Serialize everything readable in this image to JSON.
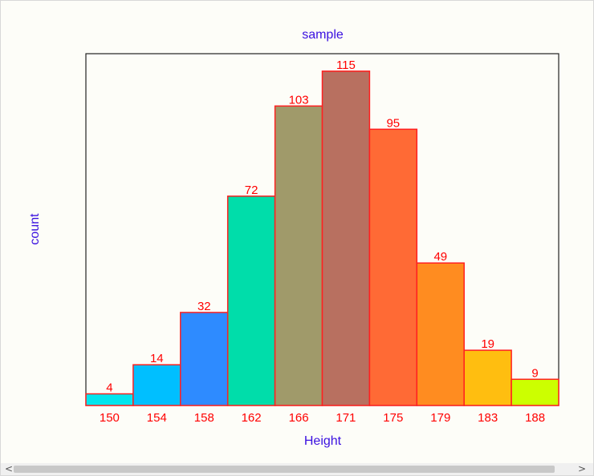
{
  "chart_data": {
    "type": "bar",
    "title": "sample",
    "xlabel": "Height",
    "ylabel": "count",
    "categories": [
      "150",
      "154",
      "158",
      "162",
      "166",
      "171",
      "175",
      "179",
      "183",
      "188"
    ],
    "values": [
      4,
      14,
      32,
      72,
      103,
      115,
      95,
      49,
      19,
      9
    ],
    "bar_colors": [
      "#00e5ee",
      "#00bfff",
      "#2e8bff",
      "#00ddaa",
      "#a09a6a",
      "#b87060",
      "#ff6a35",
      "#ff8c20",
      "#ffbe10",
      "#ccff00"
    ],
    "bar_edge_color": "#ff2020",
    "label_color": "#ff0000",
    "title_color": "#3a10e0",
    "ylim": [
      0,
      121
    ],
    "grid": false
  },
  "scrollbar": {
    "left_arrow": "<",
    "right_arrow": ">"
  }
}
